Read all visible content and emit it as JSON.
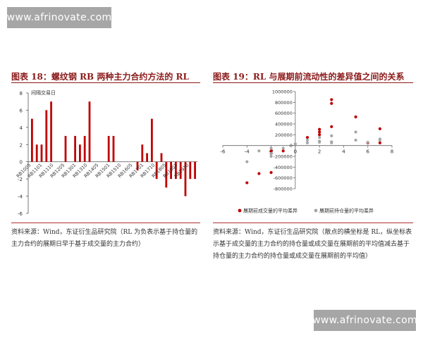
{
  "watermark": {
    "top": "www.afrinovate.com",
    "bottom": "www.afrinovate.com"
  },
  "left_panel": {
    "title": "图表 18：螺纹钢 RB 两种主力合约方法的 RL",
    "source": "资料来源：Wind，东证衍生品研究院（RL 为负表示基于持仓量的主力合约的展期日早于基于成交量的主力合约）"
  },
  "right_panel": {
    "title": "图表 19：RL 与展期前流动性的差异值之间的关系",
    "source": "资料来源：Wind，东证衍生品研究院（散点的横坐标是 RL，纵坐标表示基于成交量的主力合约的持仓量或成交量在展期前的平均值减去基于持仓量的主力合约的持仓量或成交量在展期前的平均值）"
  },
  "chart_data": [
    {
      "type": "bar",
      "title": "",
      "ylabel": "间隔交易日",
      "ylim": [
        -6,
        8
      ],
      "yticks": [
        "-6",
        "-4",
        "-2",
        "0",
        "2",
        "4",
        "6",
        "8"
      ],
      "bar_color": "#c00000",
      "grid": false,
      "tick_labels": [
        "RB1005",
        "RB1101",
        "RB1110",
        "RB1205",
        "RB1301",
        "RB1310",
        "RB1405",
        "RB1501",
        "RB1510",
        "RB1605",
        "RB1701",
        "RB1710",
        "RB1805",
        "RB1901",
        "RB1910"
      ],
      "values": [
        5,
        2,
        2,
        6,
        7,
        0,
        0,
        3,
        0,
        3,
        2,
        3,
        7,
        0,
        0,
        0,
        3,
        3,
        0,
        0,
        0,
        0,
        -1,
        2,
        1,
        5,
        -2,
        1,
        -3,
        -2,
        -2,
        -2,
        -4,
        -2,
        -2
      ]
    },
    {
      "type": "scatter",
      "title": "",
      "xlim": [
        -6,
        8
      ],
      "ylim": [
        -800000,
        1000000
      ],
      "xticks": [
        "-6",
        "-4",
        "-2",
        "0",
        "2",
        "4",
        "6",
        "8"
      ],
      "yticks": [
        "1000000",
        "800000",
        "600000",
        "400000",
        "200000",
        "0",
        "-200000",
        "-400000",
        "-600000",
        "-800000"
      ],
      "legend_position": "bottom",
      "series": [
        {
          "name": "展期前成交量的平均差异",
          "color": "#c00000",
          "points": [
            [
              -4,
              -690000
            ],
            [
              -3,
              -520000
            ],
            [
              -2,
              -500000
            ],
            [
              -2,
              -100000
            ],
            [
              -2,
              -150000
            ],
            [
              -1,
              -100000
            ],
            [
              1,
              150000
            ],
            [
              2,
              300000
            ],
            [
              2,
              250000
            ],
            [
              2,
              200000
            ],
            [
              3,
              850000
            ],
            [
              3,
              780000
            ],
            [
              3,
              350000
            ],
            [
              5,
              530000
            ],
            [
              6,
              50000
            ],
            [
              7,
              310000
            ],
            [
              7,
              50000
            ]
          ]
        },
        {
          "name": "展期前持仓量的平均差异",
          "color": "#a6a6a6",
          "points": [
            [
              -4,
              -300000
            ],
            [
              -3,
              -100000
            ],
            [
              -2,
              -200000
            ],
            [
              -2,
              -150000
            ],
            [
              -2,
              -50000
            ],
            [
              -1,
              -50000
            ],
            [
              0,
              30000
            ],
            [
              1,
              100000
            ],
            [
              1,
              50000
            ],
            [
              2,
              150000
            ],
            [
              2,
              80000
            ],
            [
              2,
              60000
            ],
            [
              3,
              180000
            ],
            [
              3,
              70000
            ],
            [
              3,
              50000
            ],
            [
              5,
              250000
            ],
            [
              5,
              100000
            ],
            [
              6,
              60000
            ],
            [
              7,
              100000
            ],
            [
              7,
              120000
            ]
          ]
        }
      ]
    }
  ]
}
